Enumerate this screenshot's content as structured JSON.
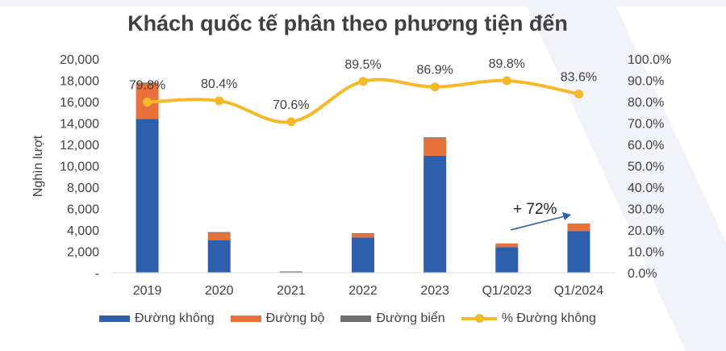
{
  "chart_data": {
    "type": "bar",
    "title": "Khách quốc tế phân theo phương tiện đến",
    "ylabel": "Nghìn lượt",
    "categories": [
      "2019",
      "2020",
      "2021",
      "2022",
      "2023",
      "Q1/2023",
      "Q1/2024"
    ],
    "y_ticks": [
      "20,000",
      "18,000",
      "16,000",
      "14,000",
      "12,000",
      "10,000",
      "8,000",
      "6,000",
      "4,000",
      "2,000",
      "-"
    ],
    "y2_ticks": [
      "100.0%",
      "90.0%",
      "80.0%",
      "70.0%",
      "60.0%",
      "50.0%",
      "40.0%",
      "30.0%",
      "20.0%",
      "10.0%",
      "0.0%"
    ],
    "ylim": [
      0,
      20000
    ],
    "y2lim": [
      0,
      100
    ],
    "stacked": true,
    "series": [
      {
        "name": "Đường không",
        "kind": "bar",
        "color": "#2e5fad",
        "values": [
          14400,
          3050,
          20,
          3300,
          10950,
          2400,
          3900
        ]
      },
      {
        "name": "Đường bộ",
        "kind": "bar",
        "color": "#e8703a",
        "values": [
          3300,
          680,
          20,
          350,
          1600,
          320,
          660
        ]
      },
      {
        "name": "Đường biển",
        "kind": "bar",
        "color": "#6e6e6e",
        "values": [
          80,
          70,
          80,
          50,
          110,
          20,
          40
        ]
      },
      {
        "name": "% Đường không",
        "kind": "line",
        "axis": "right",
        "color": "#f4b828",
        "values": [
          79.8,
          80.4,
          70.6,
          89.5,
          86.9,
          89.8,
          83.6
        ]
      }
    ],
    "data_labels": [
      "79.8%",
      "80.4%",
      "70.6%",
      "89.5%",
      "86.9%",
      "89.8%",
      "83.6%"
    ],
    "annotation": "+ 72%",
    "legend_position": "bottom"
  },
  "colors": {
    "background_shape": "#eef1f7",
    "text": "#404040",
    "arrow": "#2e5fad"
  }
}
